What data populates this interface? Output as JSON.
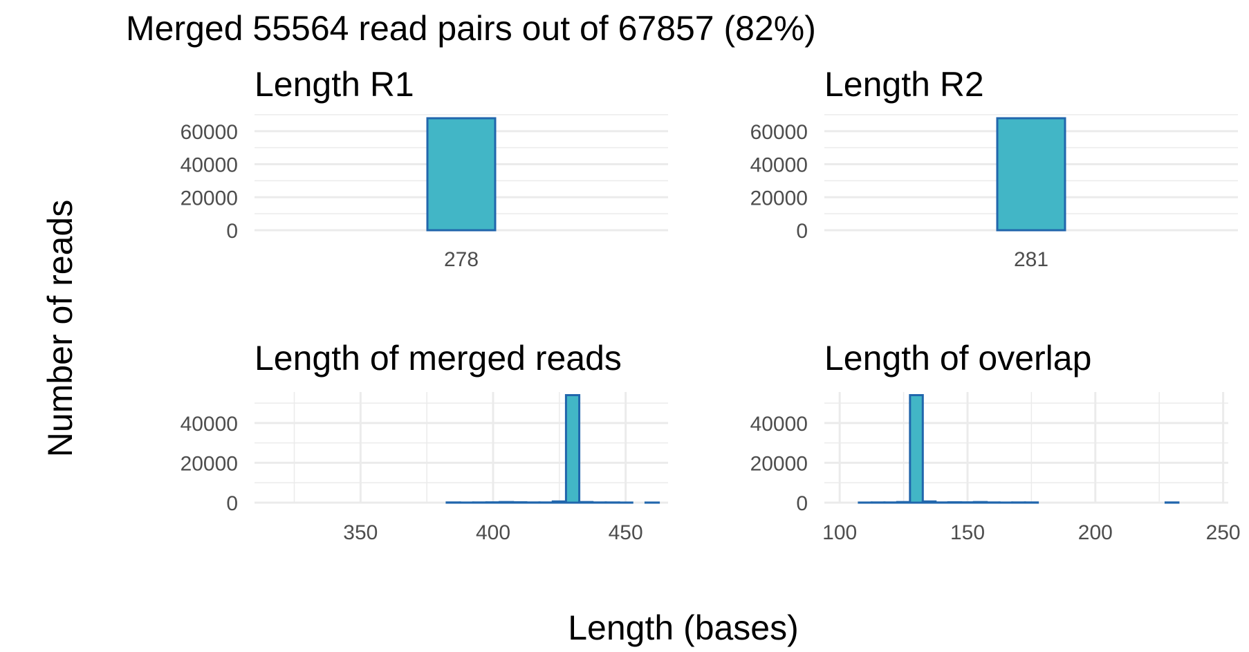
{
  "title": "Merged 55564 read pairs out of 67857 (82%)",
  "ylabel": "Number of reads",
  "xlabel": "Length (bases)",
  "colors": {
    "fill": "#42b6c6",
    "stroke": "#2166ac",
    "grid": "#ebebeb",
    "tick_text": "#4d4d4d"
  },
  "chart_data": [
    {
      "type": "bar",
      "title": "Length R1",
      "categories": [
        "278"
      ],
      "values": [
        67857
      ],
      "ylim": [
        0,
        67857
      ],
      "y_ticks": [
        0,
        20000,
        40000,
        60000
      ],
      "xlabel": "Length (bases)",
      "ylabel": "Number of reads",
      "grid": true
    },
    {
      "type": "bar",
      "title": "Length R2",
      "categories": [
        "281"
      ],
      "values": [
        67857
      ],
      "ylim": [
        0,
        67857
      ],
      "y_ticks": [
        0,
        20000,
        40000,
        60000
      ],
      "xlabel": "Length (bases)",
      "ylabel": "Number of reads",
      "grid": true
    },
    {
      "type": "bar",
      "title": "Length of merged reads",
      "x": [
        315,
        320,
        325,
        330,
        335,
        340,
        345,
        350,
        355,
        360,
        365,
        370,
        375,
        380,
        385,
        390,
        395,
        400,
        405,
        410,
        415,
        420,
        425,
        430,
        435,
        440,
        445,
        450,
        455,
        460
      ],
      "values": [
        0,
        0,
        0,
        0,
        0,
        0,
        0,
        0,
        0,
        0,
        0,
        0,
        0,
        0,
        100,
        50,
        100,
        150,
        300,
        200,
        100,
        100,
        600,
        54000,
        300,
        100,
        100,
        50,
        0,
        50
      ],
      "bin_width": 5,
      "xlim": [
        310,
        466
      ],
      "x_ticks": [
        350,
        400,
        450
      ],
      "ylim": [
        0,
        55564
      ],
      "y_ticks": [
        0,
        20000,
        40000
      ],
      "xlabel": "Length (bases)",
      "ylabel": "Number of reads",
      "grid": true
    },
    {
      "type": "bar",
      "title": "Length of overlap",
      "x": [
        100,
        105,
        110,
        115,
        120,
        125,
        130,
        135,
        140,
        145,
        150,
        155,
        160,
        165,
        170,
        175,
        180,
        185,
        190,
        195,
        200,
        205,
        210,
        215,
        220,
        225,
        230,
        235,
        240,
        245
      ],
      "values": [
        0,
        0,
        50,
        100,
        100,
        300,
        54000,
        600,
        100,
        200,
        150,
        300,
        100,
        50,
        100,
        100,
        0,
        0,
        0,
        0,
        0,
        0,
        0,
        0,
        0,
        0,
        100,
        0,
        0,
        0
      ],
      "bin_width": 5,
      "xlim": [
        94,
        252
      ],
      "x_ticks": [
        100,
        150,
        200,
        250
      ],
      "ylim": [
        0,
        55564
      ],
      "y_ticks": [
        0,
        20000,
        40000
      ],
      "xlabel": "Length (bases)",
      "ylabel": "Number of reads",
      "grid": true
    }
  ]
}
